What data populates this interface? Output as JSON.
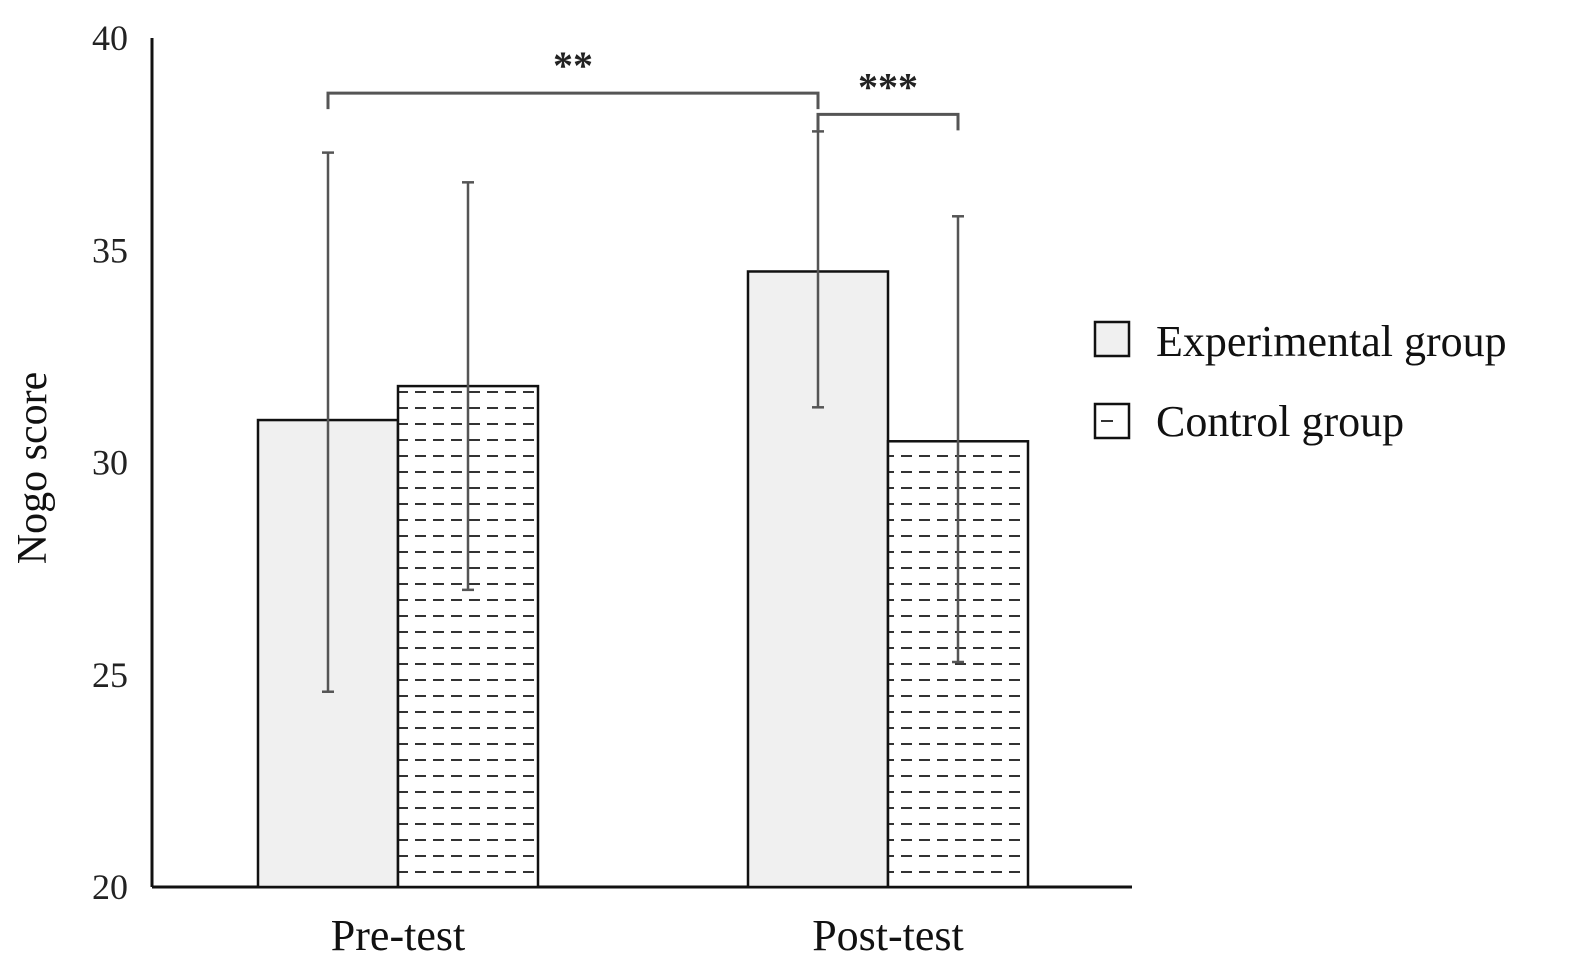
{
  "chart_data": {
    "type": "bar",
    "title": "",
    "xlabel": "",
    "ylabel": "Nogo score",
    "ylim": [
      20,
      40
    ],
    "yticks": [
      20,
      25,
      30,
      35,
      40
    ],
    "categories": [
      "Pre-test",
      "Post-test"
    ],
    "series": [
      {
        "name": "Experimental group",
        "values": [
          31.0,
          34.5
        ],
        "error_low": [
          24.6,
          31.3
        ],
        "error_high": [
          37.3,
          37.8
        ],
        "fill": "#f0f0f0",
        "pattern": "solid"
      },
      {
        "name": "Control group",
        "values": [
          31.8,
          30.5
        ],
        "error_low": [
          27.0,
          25.3
        ],
        "error_high": [
          36.6,
          35.8
        ],
        "fill": "#ffffff",
        "pattern": "dashed-horizontal"
      }
    ],
    "significance": [
      {
        "label": "**",
        "level": 38.7
      },
      {
        "label": "***",
        "level": 38.2
      }
    ],
    "legend_position": "right",
    "grid": false
  }
}
